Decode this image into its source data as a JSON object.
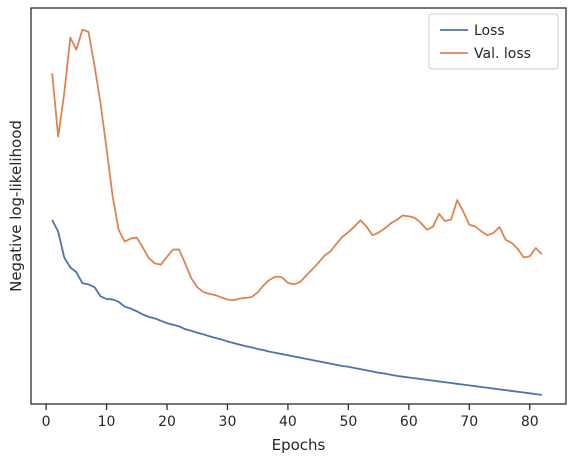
{
  "chart_data": {
    "type": "line",
    "title": "",
    "xlabel": "Epochs",
    "ylabel": "Negative log-likelihood",
    "xlim": [
      -2.5,
      86
    ],
    "ylim": [
      0,
      100
    ],
    "x_ticks": [
      0,
      10,
      20,
      30,
      40,
      50,
      60,
      70,
      80
    ],
    "y_ticks_labeled": false,
    "grid": false,
    "legend_position": "top-right",
    "series": [
      {
        "name": "Loss",
        "color": "#4c72b0",
        "x": [
          1,
          2,
          3,
          4,
          5,
          6,
          7,
          8,
          9,
          10,
          11,
          12,
          13,
          14,
          15,
          16,
          17,
          18,
          19,
          20,
          21,
          22,
          23,
          24,
          25,
          26,
          27,
          28,
          29,
          30,
          31,
          32,
          33,
          34,
          35,
          36,
          37,
          38,
          39,
          40,
          41,
          42,
          43,
          44,
          45,
          46,
          47,
          48,
          49,
          50,
          51,
          52,
          53,
          54,
          55,
          56,
          57,
          58,
          59,
          60,
          61,
          62,
          63,
          64,
          65,
          66,
          67,
          68,
          69,
          70,
          71,
          72,
          73,
          74,
          75,
          76,
          77,
          78,
          79,
          80,
          81,
          82
        ],
        "values": [
          46.5,
          43.5,
          37,
          34.5,
          33.3,
          30.5,
          30.2,
          29.5,
          27.2,
          26.5,
          26.4,
          25.8,
          24.6,
          24.1,
          23.4,
          22.6,
          22.0,
          21.6,
          21.0,
          20.4,
          20.0,
          19.6,
          18.9,
          18.5,
          18.0,
          17.6,
          17.1,
          16.7,
          16.3,
          15.8,
          15.4,
          15.0,
          14.6,
          14.3,
          13.9,
          13.6,
          13.2,
          12.9,
          12.6,
          12.3,
          12.0,
          11.7,
          11.4,
          11.1,
          10.8,
          10.5,
          10.2,
          9.9,
          9.6,
          9.4,
          9.1,
          8.8,
          8.5,
          8.2,
          7.9,
          7.7,
          7.4,
          7.1,
          6.9,
          6.7,
          6.5,
          6.3,
          6.1,
          5.9,
          5.7,
          5.5,
          5.3,
          5.1,
          4.9,
          4.7,
          4.5,
          4.3,
          4.1,
          3.9,
          3.7,
          3.5,
          3.3,
          3.1,
          2.9,
          2.7,
          2.5,
          2.3
        ]
      },
      {
        "name": "Val. loss",
        "color": "#dd8452",
        "x": [
          1,
          2,
          3,
          4,
          5,
          6,
          7,
          8,
          9,
          10,
          11,
          12,
          13,
          14,
          15,
          16,
          17,
          18,
          19,
          20,
          21,
          22,
          23,
          24,
          25,
          26,
          27,
          28,
          29,
          30,
          31,
          32,
          33,
          34,
          35,
          36,
          37,
          38,
          39,
          40,
          41,
          42,
          43,
          44,
          45,
          46,
          47,
          48,
          49,
          50,
          51,
          52,
          53,
          54,
          55,
          56,
          57,
          58,
          59,
          60,
          61,
          62,
          63,
          64,
          65,
          66,
          67,
          68,
          69,
          70,
          71,
          72,
          73,
          74,
          75,
          76,
          77,
          78,
          79,
          80,
          81,
          82
        ],
        "values": [
          83.5,
          67.5,
          78.5,
          92.5,
          89.5,
          94.5,
          94.0,
          85.5,
          76.0,
          64.5,
          52.5,
          44.0,
          41.0,
          41.8,
          42.0,
          39.5,
          36.8,
          35.5,
          35.2,
          37.2,
          39.0,
          39.0,
          35.5,
          31.8,
          29.5,
          28.3,
          27.8,
          27.5,
          26.9,
          26.4,
          26.2,
          26.6,
          26.8,
          27.0,
          28.2,
          30.0,
          31.4,
          32.2,
          32.0,
          30.6,
          30.2,
          30.8,
          32.4,
          34.0,
          35.6,
          37.4,
          38.5,
          40.4,
          42.2,
          43.4,
          44.8,
          46.4,
          44.8,
          42.6,
          43.3,
          44.3,
          45.6,
          46.5,
          47.6,
          47.4,
          47.0,
          45.7,
          44.0,
          44.8,
          48.0,
          46.2,
          46.6,
          51.5,
          48.6,
          45.3,
          44.8,
          43.6,
          42.6,
          43.2,
          44.7,
          41.5,
          40.7,
          39.2,
          37.0,
          37.3,
          39.4,
          37.8
        ]
      }
    ]
  }
}
